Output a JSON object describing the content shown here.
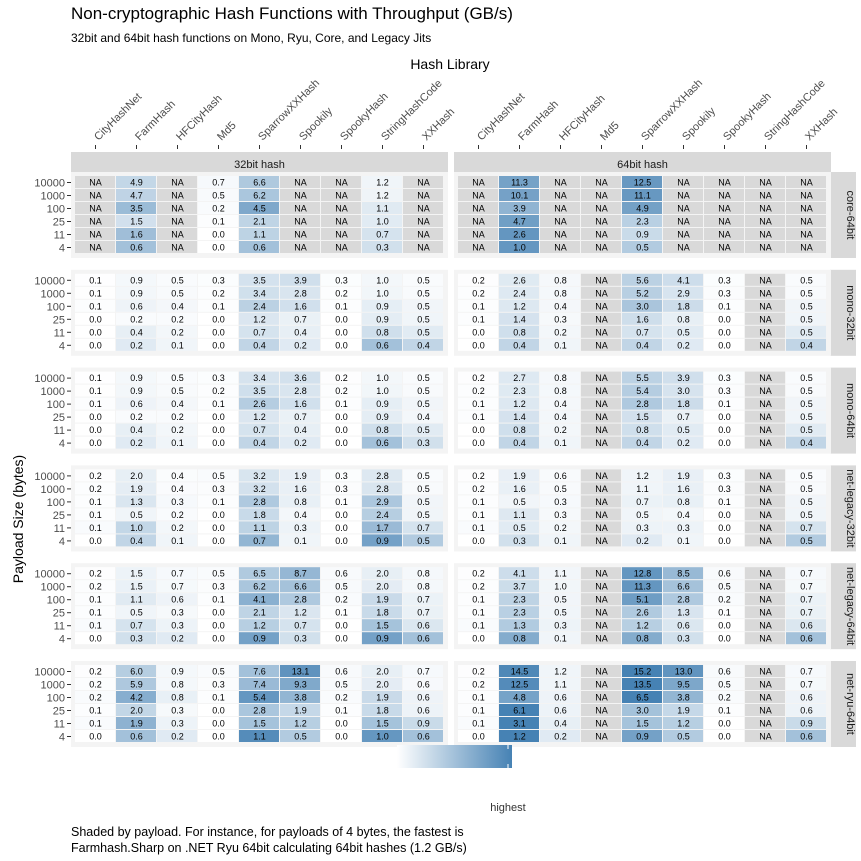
{
  "chart_data": {
    "type": "heatmap",
    "title": "Non-cryptographic Hash Functions with Throughput (GB/s)",
    "subtitle": "32bit and 64bit hash functions on Mono, Ryu, Core, and Legacy Jits",
    "xlabel": "Hash Library",
    "ylabel": "Payload Size (bytes)",
    "caption": [
      "Shaded by payload. For instance, for payloads of 4 bytes, the fastest is",
      "Farmhash.Sharp on .NET Ryu 64bit calculating 64bit hashes (1.2 GB/s)"
    ],
    "legend": {
      "position": "bottom",
      "label": "highest"
    },
    "colors": {
      "low": "#ffffff",
      "high": "#4682b4",
      "na": "#d9d9d9",
      "strip": "#d9d9d9"
    },
    "libraries": [
      "CityHashNet",
      "FarmHash",
      "HFCityHash",
      "Md5",
      "SparrowXXHash",
      "Spookily",
      "SpookyHash",
      "StringHashCode",
      "XXHash"
    ],
    "payloads": [
      "10000",
      "1000",
      "100",
      "25",
      "11",
      "4"
    ],
    "column_facets": [
      "32bit hash",
      "64bit hash"
    ],
    "row_facets": [
      "core-64bit",
      "mono-32bit",
      "mono-64bit",
      "net-legacy-32bit",
      "net-legacy-64bit",
      "net-ryu-64bit"
    ],
    "values": {
      "core-64bit": {
        "32bit hash": [
          [
            "NA",
            "4.9",
            "NA",
            "0.7",
            "6.6",
            "NA",
            "NA",
            "1.2",
            "NA"
          ],
          [
            "NA",
            "4.7",
            "NA",
            "0.5",
            "6.2",
            "NA",
            "NA",
            "1.2",
            "NA"
          ],
          [
            "NA",
            "3.5",
            "NA",
            "0.2",
            "4.5",
            "NA",
            "NA",
            "1.1",
            "NA"
          ],
          [
            "NA",
            "1.5",
            "NA",
            "0.1",
            "2.1",
            "NA",
            "NA",
            "1.0",
            "NA"
          ],
          [
            "NA",
            "1.6",
            "NA",
            "0.0",
            "1.1",
            "NA",
            "NA",
            "0.7",
            "NA"
          ],
          [
            "NA",
            "0.6",
            "NA",
            "0.0",
            "0.6",
            "NA",
            "NA",
            "0.3",
            "NA"
          ]
        ],
        "64bit hash": [
          [
            "NA",
            "11.3",
            "NA",
            "NA",
            "12.5",
            "NA",
            "NA",
            "NA",
            "NA"
          ],
          [
            "NA",
            "10.1",
            "NA",
            "NA",
            "11.1",
            "NA",
            "NA",
            "NA",
            "NA"
          ],
          [
            "NA",
            "3.9",
            "NA",
            "NA",
            "4.9",
            "NA",
            "NA",
            "NA",
            "NA"
          ],
          [
            "NA",
            "4.7",
            "NA",
            "NA",
            "2.3",
            "NA",
            "NA",
            "NA",
            "NA"
          ],
          [
            "NA",
            "2.6",
            "NA",
            "NA",
            "0.9",
            "NA",
            "NA",
            "NA",
            "NA"
          ],
          [
            "NA",
            "1.0",
            "NA",
            "NA",
            "0.5",
            "NA",
            "NA",
            "NA",
            "NA"
          ]
        ]
      },
      "mono-32bit": {
        "32bit hash": [
          [
            "0.1",
            "0.9",
            "0.5",
            "0.3",
            "3.5",
            "3.9",
            "0.3",
            "1.0",
            "0.5"
          ],
          [
            "0.1",
            "0.9",
            "0.5",
            "0.2",
            "3.4",
            "2.8",
            "0.2",
            "1.0",
            "0.5"
          ],
          [
            "0.1",
            "0.6",
            "0.4",
            "0.1",
            "2.4",
            "1.6",
            "0.1",
            "0.9",
            "0.5"
          ],
          [
            "0.0",
            "0.2",
            "0.2",
            "0.0",
            "1.2",
            "0.7",
            "0.0",
            "0.9",
            "0.5"
          ],
          [
            "0.0",
            "0.4",
            "0.2",
            "0.0",
            "0.7",
            "0.4",
            "0.0",
            "0.8",
            "0.5"
          ],
          [
            "0.0",
            "0.2",
            "0.1",
            "0.0",
            "0.4",
            "0.2",
            "0.0",
            "0.6",
            "0.4"
          ]
        ],
        "64bit hash": [
          [
            "0.2",
            "2.6",
            "0.8",
            "NA",
            "5.6",
            "4.1",
            "0.3",
            "NA",
            "0.5"
          ],
          [
            "0.2",
            "2.4",
            "0.8",
            "NA",
            "5.2",
            "2.9",
            "0.3",
            "NA",
            "0.5"
          ],
          [
            "0.1",
            "1.2",
            "0.4",
            "NA",
            "3.0",
            "1.8",
            "0.1",
            "NA",
            "0.5"
          ],
          [
            "0.1",
            "1.4",
            "0.3",
            "NA",
            "1.6",
            "0.8",
            "0.0",
            "NA",
            "0.5"
          ],
          [
            "0.0",
            "0.8",
            "0.2",
            "NA",
            "0.7",
            "0.5",
            "0.0",
            "NA",
            "0.5"
          ],
          [
            "0.0",
            "0.4",
            "0.1",
            "NA",
            "0.4",
            "0.2",
            "0.0",
            "NA",
            "0.4"
          ]
        ]
      },
      "mono-64bit": {
        "32bit hash": [
          [
            "0.1",
            "0.9",
            "0.5",
            "0.3",
            "3.4",
            "3.6",
            "0.2",
            "1.0",
            "0.5"
          ],
          [
            "0.1",
            "0.9",
            "0.5",
            "0.2",
            "3.5",
            "2.8",
            "0.2",
            "1.0",
            "0.5"
          ],
          [
            "0.1",
            "0.6",
            "0.4",
            "0.1",
            "2.6",
            "1.6",
            "0.1",
            "0.9",
            "0.5"
          ],
          [
            "0.0",
            "0.2",
            "0.2",
            "0.0",
            "1.2",
            "0.7",
            "0.0",
            "0.9",
            "0.4"
          ],
          [
            "0.0",
            "0.4",
            "0.2",
            "0.0",
            "0.7",
            "0.4",
            "0.0",
            "0.8",
            "0.5"
          ],
          [
            "0.0",
            "0.2",
            "0.1",
            "0.0",
            "0.4",
            "0.2",
            "0.0",
            "0.6",
            "0.3"
          ]
        ],
        "64bit hash": [
          [
            "0.2",
            "2.7",
            "0.8",
            "NA",
            "5.5",
            "3.9",
            "0.3",
            "NA",
            "0.5"
          ],
          [
            "0.2",
            "2.3",
            "0.8",
            "NA",
            "5.4",
            "3.0",
            "0.3",
            "NA",
            "0.5"
          ],
          [
            "0.1",
            "1.2",
            "0.4",
            "NA",
            "2.8",
            "1.8",
            "0.1",
            "NA",
            "0.5"
          ],
          [
            "0.1",
            "1.4",
            "0.4",
            "NA",
            "1.5",
            "0.7",
            "0.0",
            "NA",
            "0.5"
          ],
          [
            "0.0",
            "0.8",
            "0.2",
            "NA",
            "0.8",
            "0.5",
            "0.0",
            "NA",
            "0.5"
          ],
          [
            "0.0",
            "0.4",
            "0.1",
            "NA",
            "0.4",
            "0.2",
            "0.0",
            "NA",
            "0.4"
          ]
        ]
      },
      "net-legacy-32bit": {
        "32bit hash": [
          [
            "0.2",
            "2.0",
            "0.4",
            "0.5",
            "3.2",
            "1.9",
            "0.3",
            "2.8",
            "0.5"
          ],
          [
            "0.2",
            "1.9",
            "0.4",
            "0.3",
            "3.2",
            "1.6",
            "0.3",
            "2.8",
            "0.5"
          ],
          [
            "0.1",
            "1.3",
            "0.3",
            "0.1",
            "2.8",
            "0.8",
            "0.1",
            "2.9",
            "0.5"
          ],
          [
            "0.1",
            "0.5",
            "0.2",
            "0.0",
            "1.8",
            "0.4",
            "0.0",
            "2.4",
            "0.5"
          ],
          [
            "0.1",
            "1.0",
            "0.2",
            "0.0",
            "1.1",
            "0.3",
            "0.0",
            "1.7",
            "0.7"
          ],
          [
            "0.0",
            "0.4",
            "0.1",
            "0.0",
            "0.7",
            "0.1",
            "0.0",
            "0.9",
            "0.5"
          ]
        ],
        "64bit hash": [
          [
            "0.2",
            "1.9",
            "0.6",
            "NA",
            "1.2",
            "1.9",
            "0.3",
            "NA",
            "0.5"
          ],
          [
            "0.2",
            "1.6",
            "0.5",
            "NA",
            "1.1",
            "1.6",
            "0.3",
            "NA",
            "0.5"
          ],
          [
            "0.1",
            "0.5",
            "0.3",
            "NA",
            "0.7",
            "0.8",
            "0.1",
            "NA",
            "0.5"
          ],
          [
            "0.1",
            "1.1",
            "0.3",
            "NA",
            "0.5",
            "0.4",
            "0.0",
            "NA",
            "0.5"
          ],
          [
            "0.1",
            "0.5",
            "0.2",
            "NA",
            "0.3",
            "0.3",
            "0.0",
            "NA",
            "0.7"
          ],
          [
            "0.0",
            "0.3",
            "0.1",
            "NA",
            "0.2",
            "0.1",
            "0.0",
            "NA",
            "0.5"
          ]
        ]
      },
      "net-legacy-64bit": {
        "32bit hash": [
          [
            "0.2",
            "1.5",
            "0.7",
            "0.5",
            "6.5",
            "8.7",
            "0.6",
            "2.0",
            "0.8"
          ],
          [
            "0.2",
            "1.5",
            "0.7",
            "0.3",
            "6.2",
            "6.6",
            "0.5",
            "2.0",
            "0.8"
          ],
          [
            "0.1",
            "1.1",
            "0.6",
            "0.1",
            "4.1",
            "2.8",
            "0.2",
            "1.9",
            "0.7"
          ],
          [
            "0.1",
            "0.5",
            "0.3",
            "0.0",
            "2.1",
            "1.2",
            "0.1",
            "1.8",
            "0.7"
          ],
          [
            "0.1",
            "0.7",
            "0.3",
            "0.0",
            "1.2",
            "0.7",
            "0.0",
            "1.5",
            "0.6"
          ],
          [
            "0.0",
            "0.3",
            "0.2",
            "0.0",
            "0.9",
            "0.3",
            "0.0",
            "0.9",
            "0.6"
          ]
        ],
        "64bit hash": [
          [
            "0.2",
            "4.1",
            "1.1",
            "NA",
            "12.8",
            "8.5",
            "0.6",
            "NA",
            "0.7"
          ],
          [
            "0.2",
            "3.7",
            "1.0",
            "NA",
            "11.3",
            "6.6",
            "0.5",
            "NA",
            "0.7"
          ],
          [
            "0.1",
            "2.3",
            "0.5",
            "NA",
            "5.1",
            "2.8",
            "0.2",
            "NA",
            "0.7"
          ],
          [
            "0.1",
            "2.3",
            "0.5",
            "NA",
            "2.6",
            "1.3",
            "0.1",
            "NA",
            "0.7"
          ],
          [
            "0.1",
            "1.3",
            "0.3",
            "NA",
            "1.2",
            "0.6",
            "0.0",
            "NA",
            "0.6"
          ],
          [
            "0.0",
            "0.8",
            "0.1",
            "NA",
            "0.8",
            "0.3",
            "0.0",
            "NA",
            "0.6"
          ]
        ]
      },
      "net-ryu-64bit": {
        "32bit hash": [
          [
            "0.2",
            "6.0",
            "0.9",
            "0.5",
            "7.6",
            "13.1",
            "0.6",
            "2.0",
            "0.7"
          ],
          [
            "0.2",
            "5.9",
            "0.8",
            "0.3",
            "7.4",
            "9.3",
            "0.5",
            "2.0",
            "0.6"
          ],
          [
            "0.2",
            "4.2",
            "0.8",
            "0.1",
            "5.4",
            "3.8",
            "0.2",
            "1.9",
            "0.6"
          ],
          [
            "0.1",
            "2.0",
            "0.3",
            "0.0",
            "2.8",
            "1.9",
            "0.1",
            "1.8",
            "0.6"
          ],
          [
            "0.1",
            "1.9",
            "0.3",
            "0.0",
            "1.5",
            "1.2",
            "0.0",
            "1.5",
            "0.9"
          ],
          [
            "0.0",
            "0.6",
            "0.2",
            "0.0",
            "1.1",
            "0.5",
            "0.0",
            "1.0",
            "0.6"
          ]
        ],
        "64bit hash": [
          [
            "0.2",
            "14.5",
            "1.2",
            "NA",
            "15.2",
            "13.0",
            "0.6",
            "NA",
            "0.7"
          ],
          [
            "0.2",
            "12.5",
            "1.1",
            "NA",
            "13.5",
            "9.5",
            "0.5",
            "NA",
            "0.7"
          ],
          [
            "0.1",
            "4.8",
            "0.6",
            "NA",
            "6.5",
            "3.8",
            "0.2",
            "NA",
            "0.6"
          ],
          [
            "0.1",
            "6.1",
            "0.6",
            "NA",
            "3.0",
            "1.9",
            "0.1",
            "NA",
            "0.6"
          ],
          [
            "0.1",
            "3.1",
            "0.4",
            "NA",
            "1.5",
            "1.2",
            "0.0",
            "NA",
            "0.9"
          ],
          [
            "0.0",
            "1.2",
            "0.2",
            "NA",
            "0.9",
            "0.5",
            "0.0",
            "NA",
            "0.6"
          ]
        ]
      }
    }
  }
}
